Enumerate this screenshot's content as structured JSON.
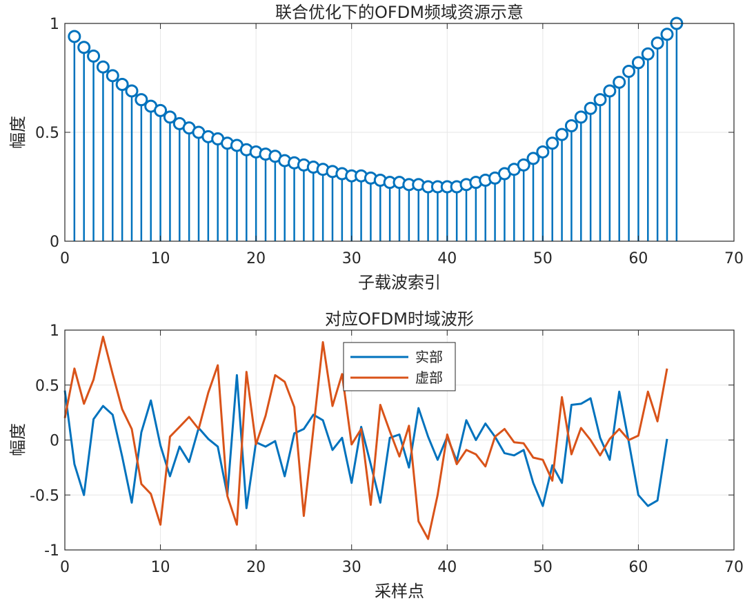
{
  "chart_data": [
    {
      "type": "stem",
      "title": "联合优化下的OFDM频域资源示意",
      "xlabel": "子载波索引",
      "ylabel": "幅度",
      "xlim": [
        0,
        70
      ],
      "ylim": [
        0,
        1
      ],
      "xticks": [
        0,
        10,
        20,
        30,
        40,
        50,
        60,
        70
      ],
      "yticks": [
        0,
        0.5,
        1
      ],
      "ytick_labels": [
        "0",
        "0.5",
        "1"
      ],
      "grid": true,
      "series": [
        {
          "color": "#0072BD",
          "x": [
            1,
            2,
            3,
            4,
            5,
            6,
            7,
            8,
            9,
            10,
            11,
            12,
            13,
            14,
            15,
            16,
            17,
            18,
            19,
            20,
            21,
            22,
            23,
            24,
            25,
            26,
            27,
            28,
            29,
            30,
            31,
            32,
            33,
            34,
            35,
            36,
            37,
            38,
            39,
            40,
            41,
            42,
            43,
            44,
            45,
            46,
            47,
            48,
            49,
            50,
            51,
            52,
            53,
            54,
            55,
            56,
            57,
            58,
            59,
            60,
            61,
            62,
            63,
            64
          ],
          "values": [
            0.94,
            0.89,
            0.85,
            0.8,
            0.76,
            0.72,
            0.69,
            0.65,
            0.62,
            0.6,
            0.57,
            0.54,
            0.52,
            0.5,
            0.48,
            0.47,
            0.45,
            0.44,
            0.42,
            0.41,
            0.4,
            0.39,
            0.37,
            0.36,
            0.35,
            0.34,
            0.33,
            0.32,
            0.31,
            0.3,
            0.3,
            0.29,
            0.28,
            0.27,
            0.27,
            0.26,
            0.26,
            0.25,
            0.25,
            0.25,
            0.25,
            0.26,
            0.27,
            0.28,
            0.29,
            0.31,
            0.33,
            0.35,
            0.38,
            0.41,
            0.45,
            0.49,
            0.53,
            0.57,
            0.61,
            0.65,
            0.69,
            0.73,
            0.78,
            0.82,
            0.86,
            0.91,
            0.95,
            1.0
          ]
        }
      ]
    },
    {
      "type": "line",
      "title": "对应OFDM时域波形",
      "xlabel": "采样点",
      "ylabel": "幅度",
      "xlim": [
        0,
        70
      ],
      "ylim": [
        -1,
        1
      ],
      "xticks": [
        0,
        10,
        20,
        30,
        40,
        50,
        60,
        70
      ],
      "yticks": [
        -1,
        -0.5,
        0,
        0.5,
        1
      ],
      "ytick_labels": [
        "-1",
        "-0.5",
        "0",
        "0.5",
        "1"
      ],
      "grid": true,
      "legend_position": "top-center",
      "x": [
        0,
        1,
        2,
        3,
        4,
        5,
        6,
        7,
        8,
        9,
        10,
        11,
        12,
        13,
        14,
        15,
        16,
        17,
        18,
        19,
        20,
        21,
        22,
        23,
        24,
        25,
        26,
        27,
        28,
        29,
        30,
        31,
        32,
        33,
        34,
        35,
        36,
        37,
        38,
        39,
        40,
        41,
        42,
        43,
        44,
        45,
        46,
        47,
        48,
        49,
        50,
        51,
        52,
        53,
        54,
        55,
        56,
        57,
        58,
        59,
        60,
        61,
        62,
        63
      ],
      "series": [
        {
          "name": "实部",
          "color": "#0072BD",
          "values": [
            0.45,
            -0.22,
            -0.5,
            0.19,
            0.31,
            0.23,
            -0.15,
            -0.57,
            0.07,
            0.36,
            -0.05,
            -0.33,
            -0.06,
            -0.2,
            0.11,
            0.01,
            -0.06,
            -0.5,
            0.59,
            -0.62,
            -0.02,
            -0.06,
            -0.01,
            -0.33,
            0.06,
            0.1,
            0.23,
            0.18,
            -0.09,
            0.02,
            -0.39,
            0.12,
            -0.22,
            -0.57,
            0.02,
            0.05,
            -0.25,
            0.29,
            0.03,
            -0.18,
            0.03,
            -0.19,
            0.18,
            0.0,
            0.15,
            0.03,
            -0.12,
            -0.14,
            -0.09,
            -0.39,
            -0.6,
            -0.23,
            -0.39,
            0.32,
            0.33,
            0.38,
            0.02,
            -0.18,
            0.44,
            -0.02,
            -0.5,
            -0.6,
            -0.55,
            0.01
          ]
        },
        {
          "name": "虚部",
          "color": "#D95319",
          "values": [
            0.2,
            0.65,
            0.33,
            0.55,
            0.94,
            0.6,
            0.28,
            0.1,
            -0.4,
            -0.49,
            -0.77,
            0.03,
            0.12,
            0.21,
            0.1,
            0.43,
            0.68,
            -0.51,
            -0.77,
            0.62,
            -0.04,
            0.22,
            0.59,
            0.53,
            0.3,
            -0.69,
            0.1,
            0.89,
            0.31,
            0.6,
            -0.04,
            0.1,
            -0.59,
            0.32,
            0.08,
            -0.15,
            0.13,
            -0.74,
            -0.9,
            -0.5,
            0.05,
            -0.22,
            -0.09,
            -0.13,
            -0.24,
            0.03,
            0.1,
            -0.02,
            -0.03,
            -0.16,
            -0.18,
            -0.37,
            0.39,
            -0.13,
            0.11,
            0.0,
            -0.14,
            0.01,
            0.1,
            0.0,
            0.04,
            0.44,
            0.17,
            0.65
          ]
        }
      ]
    }
  ]
}
